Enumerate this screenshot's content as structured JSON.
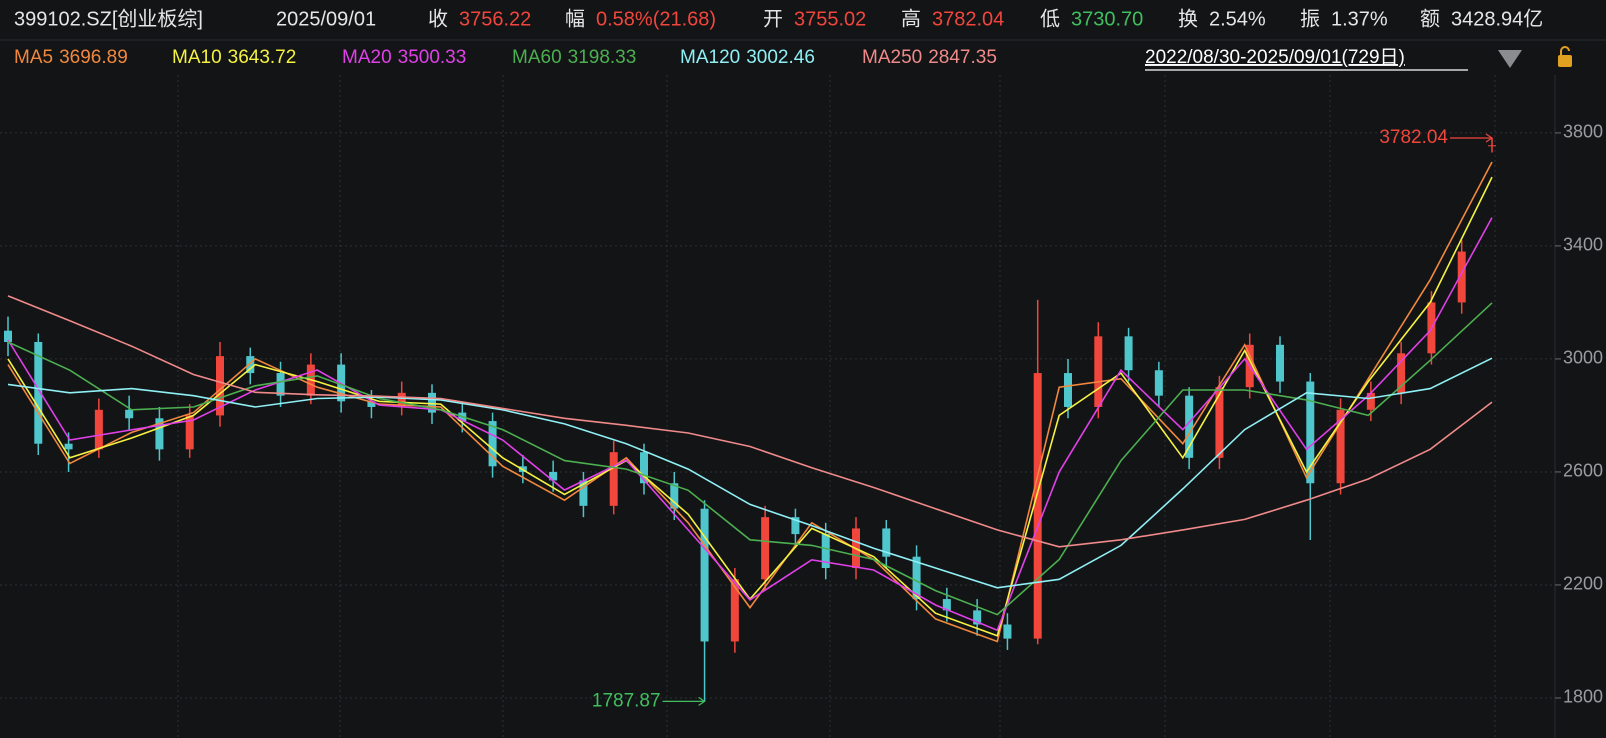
{
  "header": {
    "code": "399102.SZ[创业板综]",
    "date": "2025/09/01",
    "fields": [
      {
        "label": "收",
        "value": "3756.22",
        "color": "#f0463c"
      },
      {
        "label": "幅",
        "value": "0.58%(21.68)",
        "color": "#f0463c"
      },
      {
        "label": "开",
        "value": "3755.02",
        "color": "#f0463c"
      },
      {
        "label": "高",
        "value": "3782.04",
        "color": "#f0463c"
      },
      {
        "label": "低",
        "value": "3730.70",
        "color": "#3fbf5f"
      },
      {
        "label": "换",
        "value": "2.54%",
        "color": "#e6e6e6"
      },
      {
        "label": "振",
        "value": "1.37%",
        "color": "#e6e6e6"
      },
      {
        "label": "额",
        "value": "3428.94亿",
        "color": "#e6e6e6"
      }
    ],
    "date_range": "2022/08/30-2025/09/01(729日)"
  },
  "chart_data": {
    "type": "candlestick",
    "up_color": "#f0463c",
    "down_color": "#4fc6cc",
    "ylim": [
      1722,
      4005
    ],
    "yticks": [
      1800,
      2200,
      2600,
      3000,
      3400,
      3800
    ],
    "grid": true,
    "candles": {
      "open": [
        3100,
        3060,
        2700,
        2680,
        2820,
        2790,
        2680,
        2800,
        3010,
        2950,
        2870,
        2980,
        2850,
        2830,
        2880,
        2810,
        2780,
        2620,
        2600,
        2570,
        2480,
        2670,
        2560,
        2470,
        2000,
        2220,
        2440,
        2380,
        2260,
        2400,
        2300,
        2150,
        2110,
        2060,
        2010,
        2950,
        2830,
        3080,
        2960,
        2870,
        2650,
        2900,
        3050,
        2920,
        2560,
        2820,
        2880,
        3020,
        3200,
        3755.02
      ],
      "high": [
        3150,
        3090,
        2740,
        2860,
        2870,
        2830,
        2840,
        3060,
        3040,
        2990,
        3020,
        3020,
        2890,
        2920,
        2910,
        2850,
        2810,
        2660,
        2640,
        2600,
        2710,
        2700,
        2600,
        2500,
        2260,
        2480,
        2470,
        2420,
        2440,
        2430,
        2340,
        2190,
        2150,
        2100,
        3209,
        3000,
        3130,
        3110,
        2990,
        2900,
        2940,
        3090,
        3080,
        2950,
        2860,
        2920,
        3060,
        3240,
        3420,
        3782.04
      ],
      "low": [
        3010,
        2660,
        2600,
        2650,
        2750,
        2640,
        2650,
        2760,
        2910,
        2830,
        2840,
        2810,
        2790,
        2800,
        2770,
        2740,
        2580,
        2560,
        2530,
        2440,
        2450,
        2520,
        2430,
        1787.87,
        1960,
        2180,
        2340,
        2220,
        2220,
        2260,
        2110,
        2070,
        2020,
        1970,
        1990,
        2790,
        2790,
        2920,
        2830,
        2610,
        2610,
        2860,
        2880,
        2359,
        2520,
        2780,
        2840,
        2980,
        3160,
        3730.7
      ],
      "close": [
        3060,
        2700,
        2680,
        2820,
        2790,
        2680,
        2800,
        3010,
        2950,
        2870,
        2980,
        2850,
        2830,
        2880,
        2810,
        2780,
        2620,
        2600,
        2570,
        2480,
        2670,
        2560,
        2470,
        2000,
        2220,
        2440,
        2380,
        2260,
        2400,
        2300,
        2150,
        2110,
        2060,
        2010,
        2950,
        2830,
        3080,
        2960,
        2870,
        2650,
        2900,
        3050,
        2920,
        2560,
        2820,
        2880,
        3020,
        3200,
        3380,
        3756.22
      ]
    },
    "series": [
      {
        "name": "MA5",
        "color": "#f0883e",
        "values": [
          2980,
          2630,
          2740,
          2810,
          3000,
          2900,
          2840,
          2830,
          2620,
          2500,
          2650,
          2420,
          2120,
          2420,
          2290,
          2080,
          2000,
          2900,
          2930,
          2700,
          3050,
          2580,
          2930,
          3280,
          3696.89
        ]
      },
      {
        "name": "MA10",
        "color": "#f5f242",
        "values": [
          3000,
          2650,
          2720,
          2800,
          2980,
          2920,
          2850,
          2840,
          2650,
          2520,
          2640,
          2450,
          2150,
          2400,
          2300,
          2100,
          2020,
          2800,
          2950,
          2650,
          3030,
          2600,
          2920,
          3200,
          3643.72
        ]
      },
      {
        "name": "MA20",
        "color": "#e040e8",
        "values": [
          3067,
          2713,
          2749,
          2784,
          2890,
          2961,
          2837,
          2820,
          2713,
          2536,
          2642,
          2395,
          2147,
          2289,
          2253,
          2129,
          2040,
          2600,
          2960,
          2750,
          3000,
          2680,
          2870,
          3100,
          3500.33
        ]
      },
      {
        "name": "MA60",
        "color": "#4caf50",
        "values": [
          3060,
          2960,
          2820,
          2830,
          2905,
          2940,
          2860,
          2820,
          2750,
          2640,
          2610,
          2535,
          2360,
          2340,
          2290,
          2180,
          2095,
          2290,
          2640,
          2890,
          2890,
          2855,
          2800,
          2995,
          3198.33
        ]
      },
      {
        "name": "MA120",
        "color": "#8ff0f5",
        "values": [
          2910,
          2880,
          2895,
          2870,
          2830,
          2860,
          2865,
          2855,
          2820,
          2770,
          2700,
          2610,
          2485,
          2410,
          2330,
          2260,
          2190,
          2220,
          2340,
          2540,
          2750,
          2880,
          2860,
          2895,
          3002.46
        ]
      },
      {
        "name": "MA250",
        "color": "#f08a8a",
        "values": [
          3223,
          3135,
          3045,
          2945,
          2882,
          2873,
          2868,
          2860,
          2825,
          2790,
          2765,
          2738,
          2690,
          2615,
          2545,
          2470,
          2395,
          2335,
          2360,
          2395,
          2432,
          2500,
          2575,
          2680,
          2847.35
        ]
      }
    ]
  }
}
